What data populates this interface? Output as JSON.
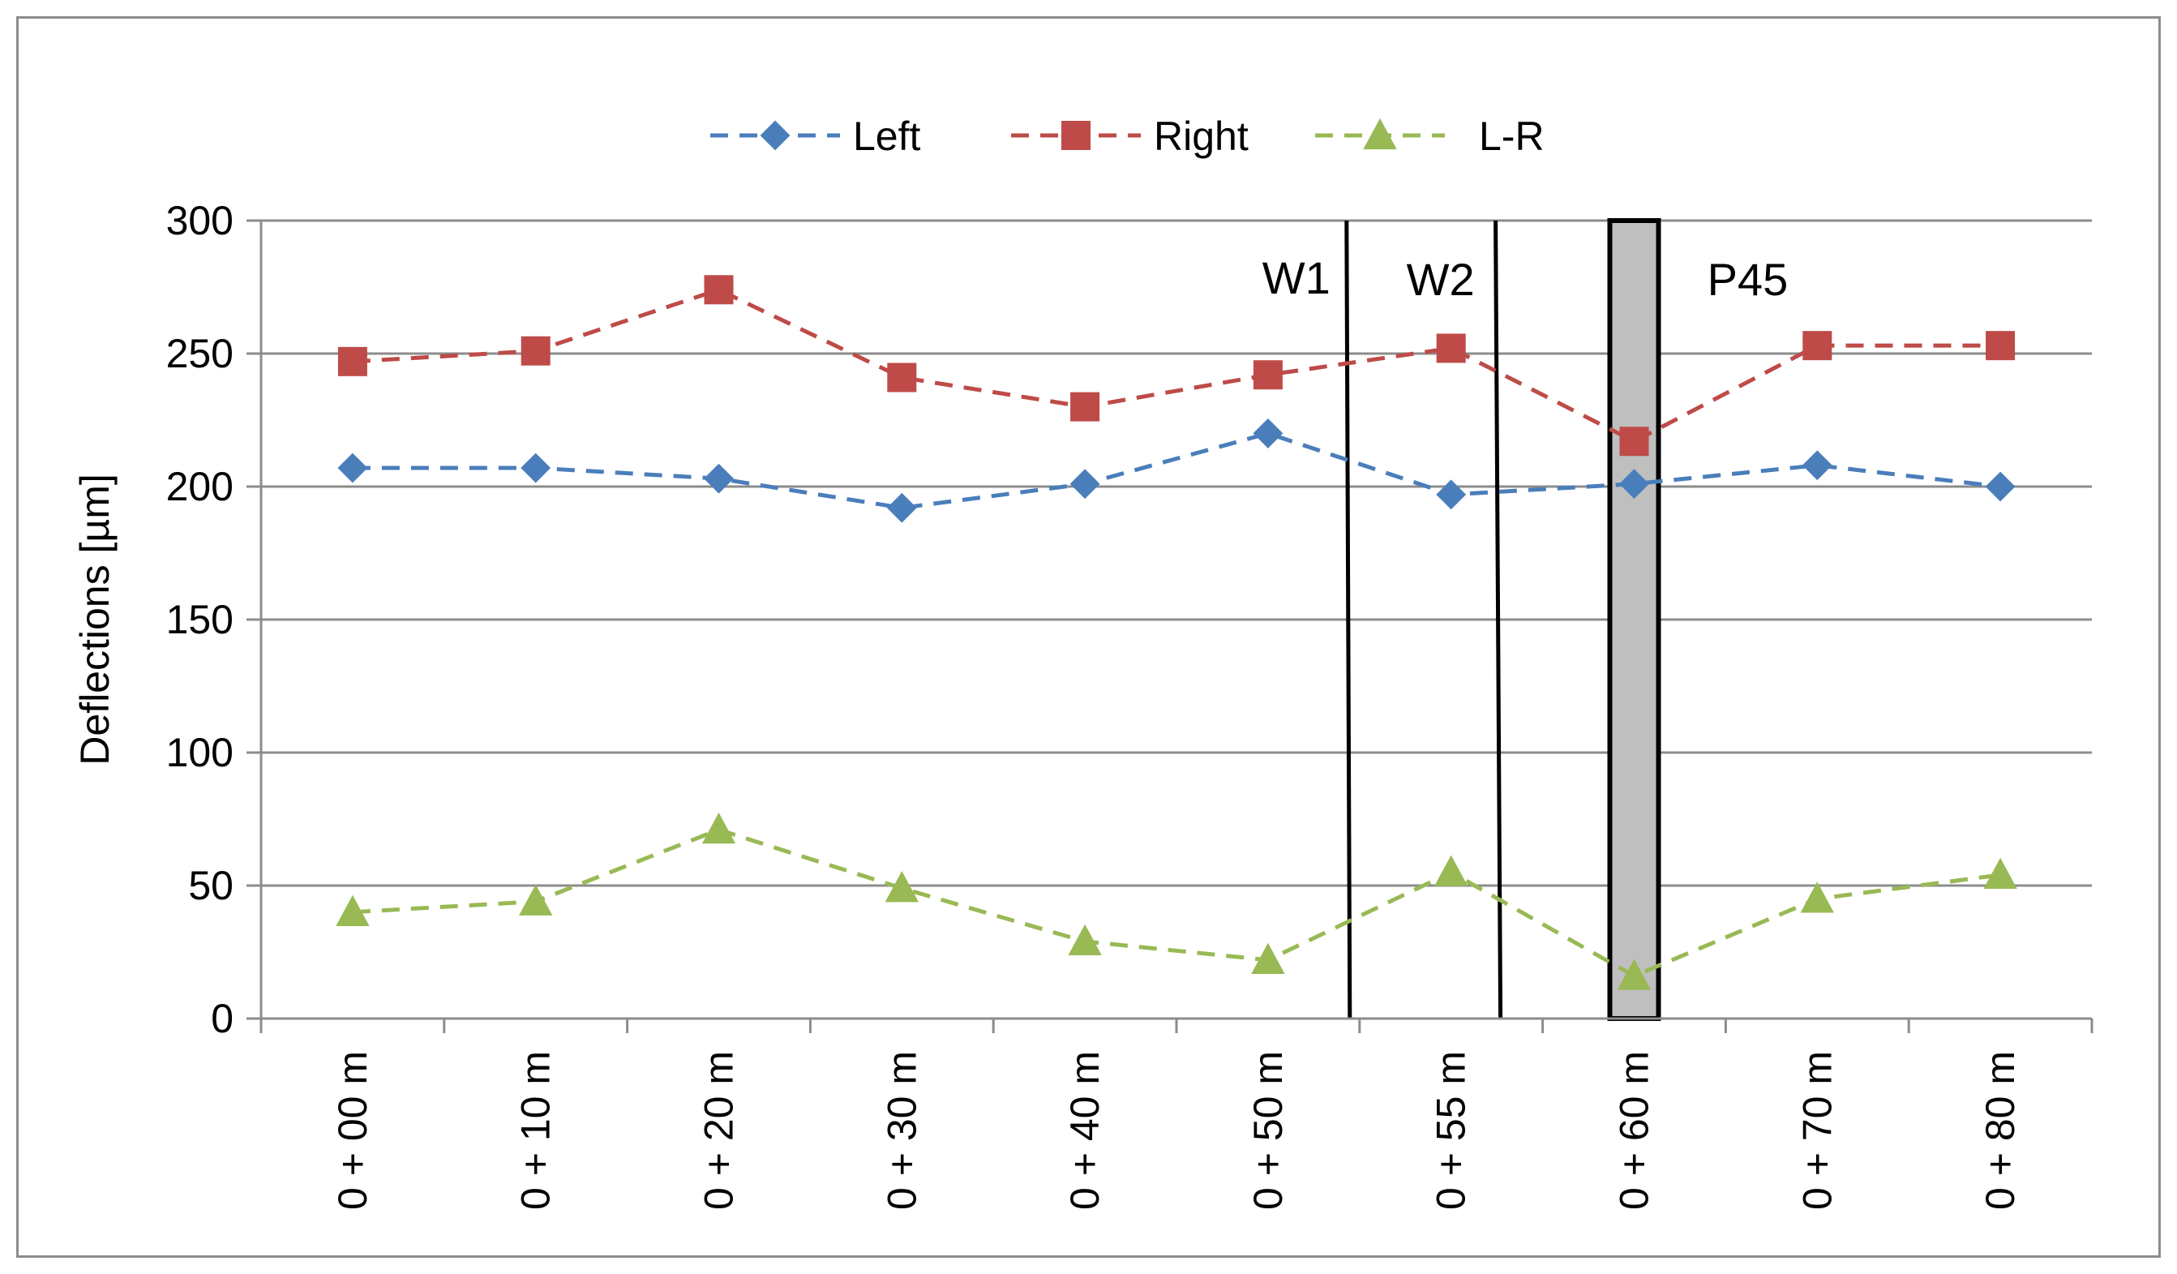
{
  "chart_data": {
    "type": "line",
    "title": "",
    "xlabel": "",
    "ylabel": "Deflections [µm]",
    "ylim": [
      0,
      300
    ],
    "yticks": [
      0,
      50,
      100,
      150,
      200,
      250,
      300
    ],
    "ytick_labels": [
      "0",
      "50",
      "100",
      "150",
      "200",
      "250",
      "300"
    ],
    "grid": true,
    "legend_position": "top",
    "categories": [
      "0 + 00 m",
      "0 + 10 m",
      "0 + 20 m",
      "0 + 30 m",
      "0 + 40 m",
      "0 + 50 m",
      "0 + 55 m",
      "0 + 60 m",
      "0 + 70 m",
      "0 + 80 m"
    ],
    "series": [
      {
        "name": "Left",
        "color": "#4a7ebb",
        "marker": "diamond",
        "values": [
          207,
          207,
          203,
          192,
          201,
          220,
          197,
          201,
          208,
          200
        ]
      },
      {
        "name": "Right",
        "color": "#be4b48",
        "marker": "square",
        "values": [
          247,
          251,
          274,
          241,
          230,
          242,
          252,
          217,
          253,
          253
        ]
      },
      {
        "name": "L-R",
        "color": "#98b954",
        "marker": "triangle",
        "values": [
          40,
          44,
          71,
          49,
          29,
          22,
          55,
          16,
          45,
          54
        ]
      }
    ],
    "annotations": [
      {
        "label": "W1",
        "type": "vertical-line",
        "position": "between 0 + 50 m and 0 + 55 m"
      },
      {
        "label": "W2",
        "type": "vertical-line",
        "position": "between 0 + 55 m and 0 + 60 m"
      },
      {
        "label": "P45",
        "type": "shaded-band",
        "position": "at 0 + 60 m",
        "fill": "#bfbfbf"
      }
    ]
  }
}
